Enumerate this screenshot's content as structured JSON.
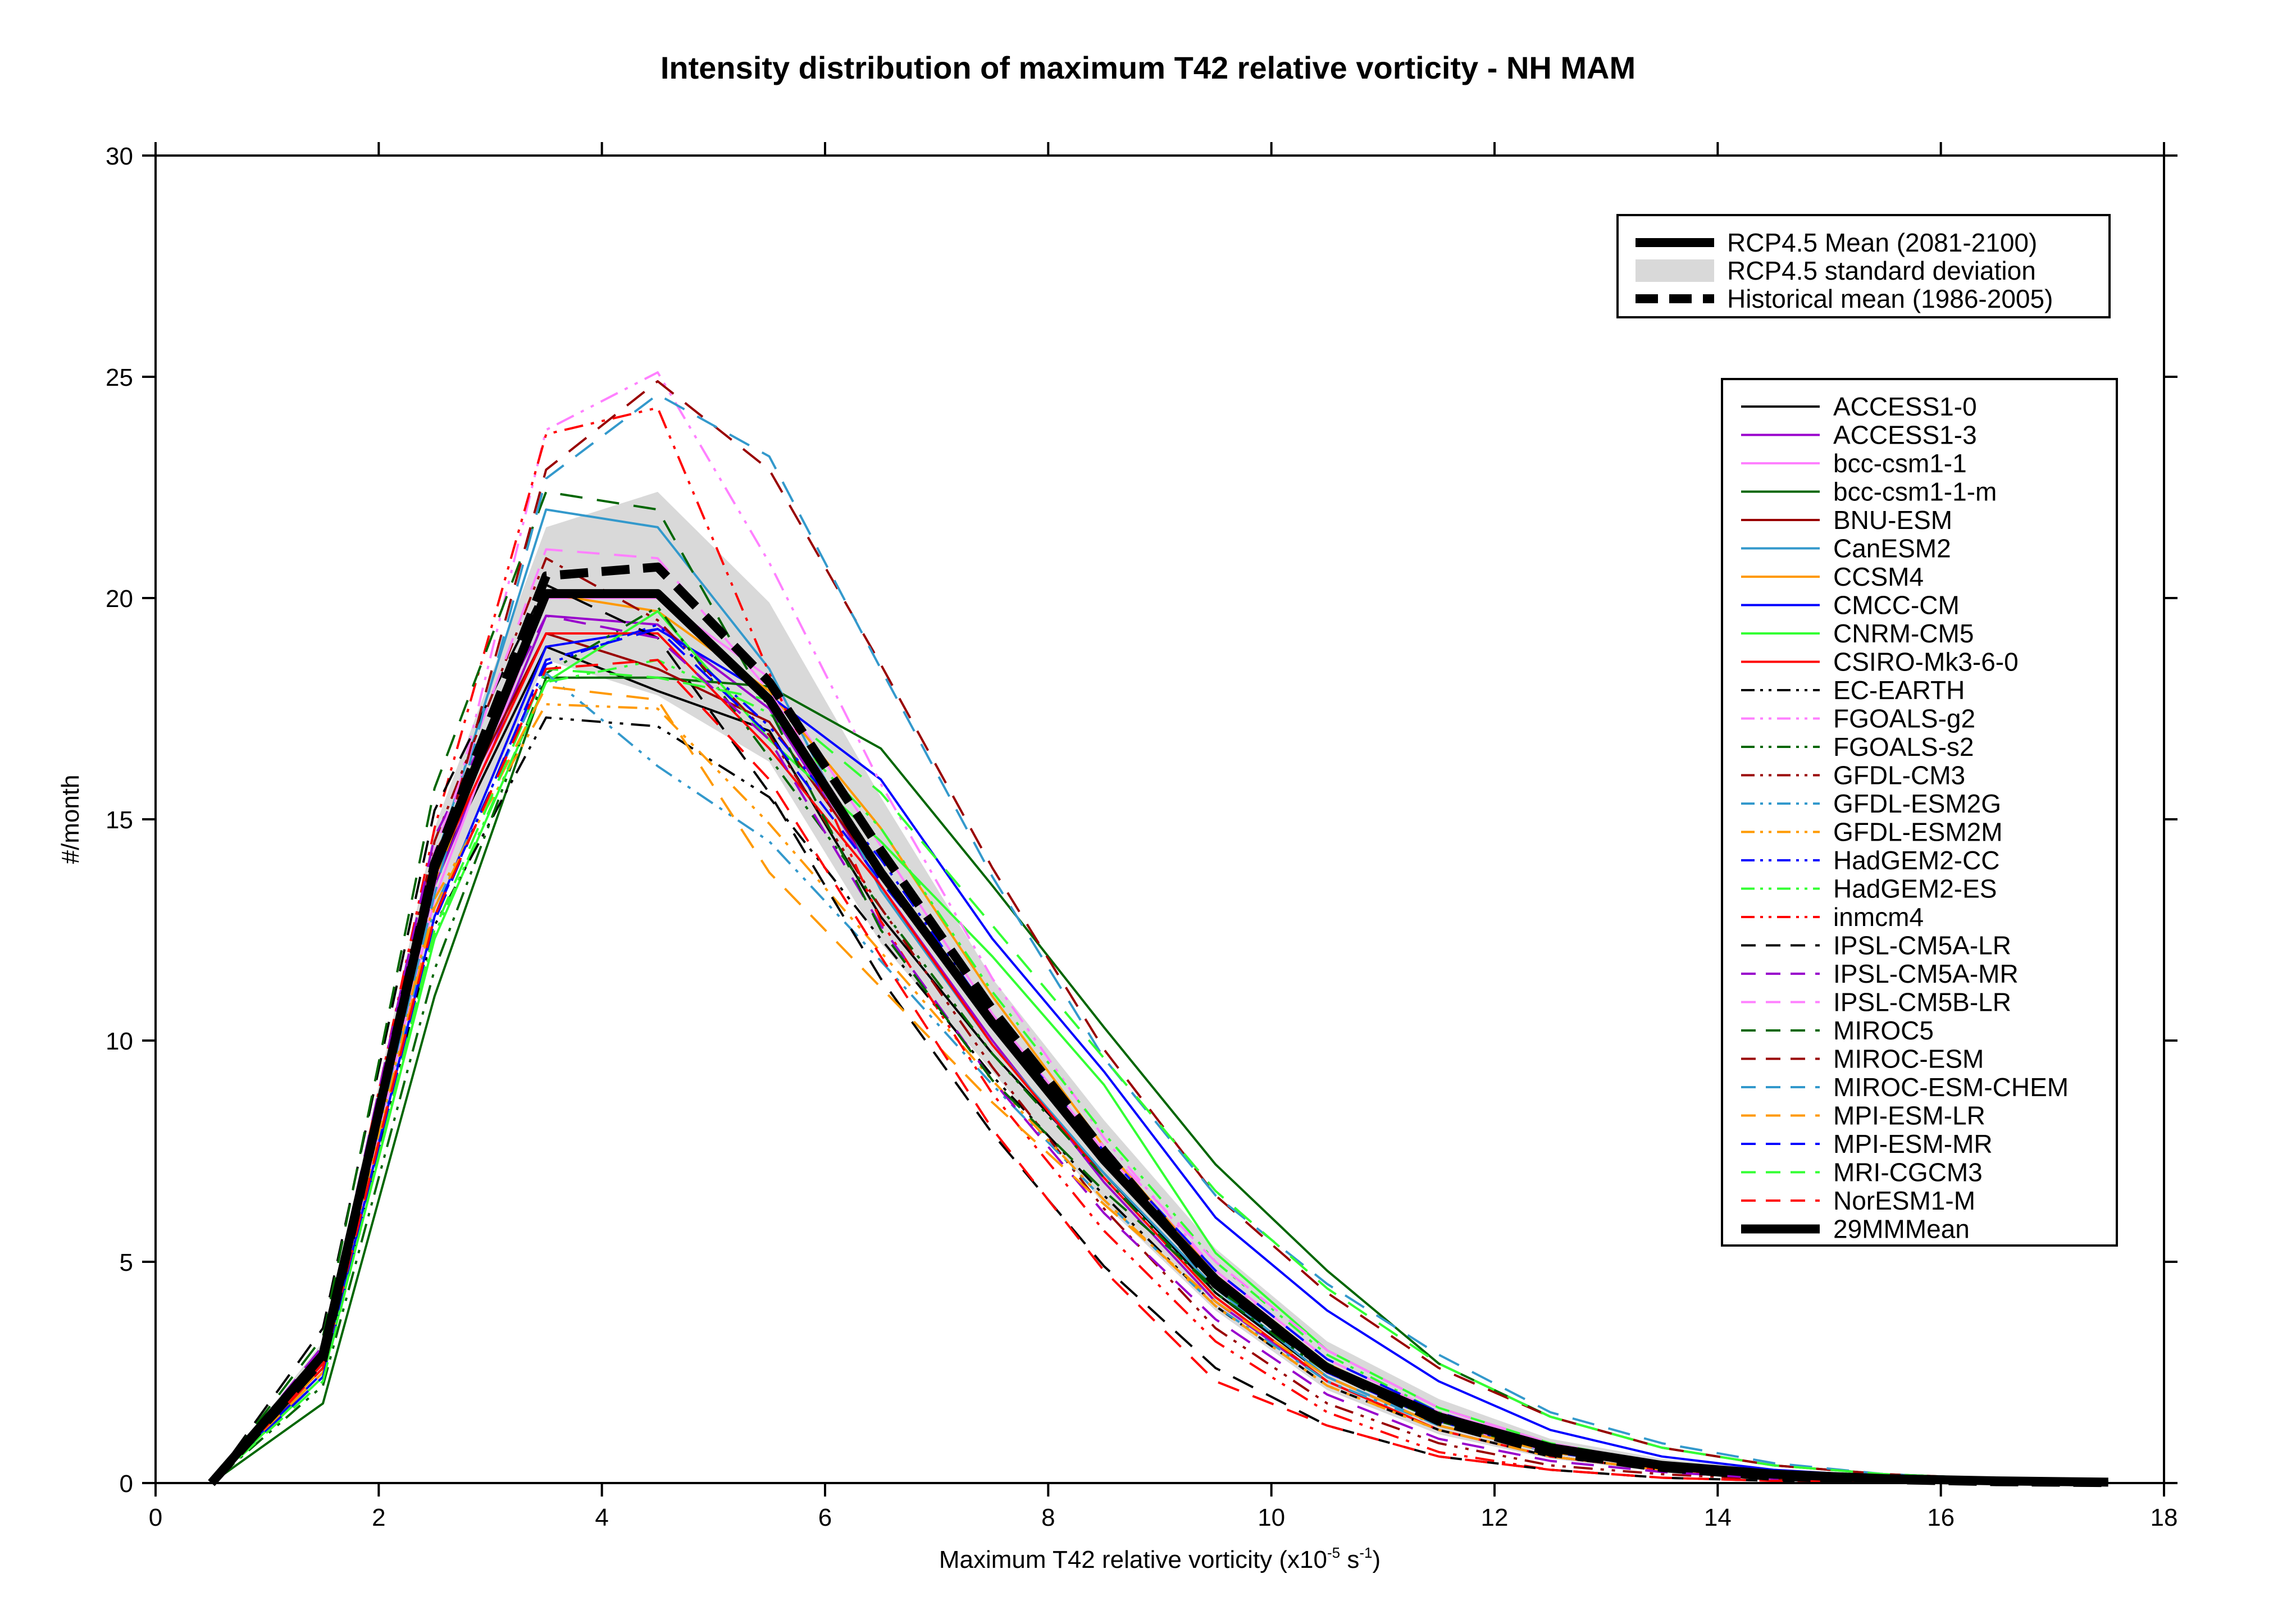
{
  "chart_data": {
    "type": "line",
    "title": "Intensity distribution of maximum T42 relative vorticity - NH MAM",
    "xlabel_main": "Maximum T42 relative vorticity (x10",
    "xlabel_exp1": "-5",
    "xlabel_mid": " s",
    "xlabel_exp2": "-1",
    "xlabel_end": ")",
    "ylabel": "#/month",
    "xlim": [
      0,
      18
    ],
    "ylim": [
      0,
      30
    ],
    "xticks": [
      0,
      2,
      4,
      6,
      8,
      10,
      12,
      14,
      16,
      18
    ],
    "yticks": [
      0,
      5,
      10,
      15,
      20,
      25,
      30
    ],
    "grid": false,
    "x": [
      0.5,
      1.5,
      2.5,
      3.5,
      4.5,
      5.5,
      6.5,
      7.5,
      8.5,
      9.5,
      10.5,
      11.5,
      12.5,
      13.5,
      14.5,
      15.5,
      16.5,
      17.5
    ],
    "legend_top": {
      "placement": "top-right",
      "entries": [
        {
          "name": "RCP4.5 Mean (2081-2100)",
          "style": "thick-solid"
        },
        {
          "name": "RCP4.5 standard deviation",
          "style": "band"
        },
        {
          "name": "Historical mean (1986-2005)",
          "style": "thick-dashed"
        }
      ]
    },
    "rcp45_mean": [
      0,
      2.9,
      13.9,
      20.1,
      20.1,
      17.7,
      13.8,
      10.4,
      7.3,
      4.6,
      2.6,
      1.5,
      0.8,
      0.4,
      0.2,
      0.1,
      0.05,
      0.02
    ],
    "historical_mean": [
      0,
      2.8,
      14.0,
      20.5,
      20.7,
      18.1,
      14.3,
      10.7,
      7.5,
      4.5,
      2.6,
      1.4,
      0.7,
      0.35,
      0.15,
      0.08,
      0.03,
      0.01
    ],
    "std_upper": [
      0,
      3.2,
      14.8,
      21.6,
      22.4,
      19.9,
      15.5,
      11.4,
      8.2,
      5.3,
      3.2,
      1.9,
      1.0,
      0.55,
      0.3,
      0.15,
      0.08,
      0.03
    ],
    "std_lower": [
      0,
      2.6,
      12.9,
      18.6,
      17.8,
      16.3,
      12.2,
      9.3,
      6.3,
      3.9,
      2.1,
      1.1,
      0.55,
      0.25,
      0.1,
      0.05,
      0.02,
      0.01
    ],
    "std_color": "#d9d9d9",
    "series": [
      {
        "name": "ACCESS1-0",
        "color": "#000000",
        "dash": "solid",
        "values": [
          0,
          2.8,
          13.7,
          18.9,
          17.9,
          17.0,
          12.8,
          9.7,
          7.0,
          4.3,
          2.4,
          1.3,
          0.7,
          0.35,
          0.15,
          0.07,
          0.03,
          0.01
        ]
      },
      {
        "name": "ACCESS1-3",
        "color": "#9900cc",
        "dash": "solid",
        "values": [
          0,
          2.7,
          13.5,
          19.6,
          19.4,
          17.5,
          13.5,
          10.0,
          6.8,
          4.1,
          2.3,
          1.2,
          0.6,
          0.3,
          0.12,
          0.06,
          0.02,
          0.01
        ]
      },
      {
        "name": "bcc-csm1-1",
        "color": "#ff80ff",
        "dash": "solid",
        "values": [
          0,
          2.6,
          13.2,
          20.0,
          20.0,
          18.2,
          14.4,
          10.6,
          7.5,
          4.8,
          2.8,
          1.6,
          0.9,
          0.45,
          0.2,
          0.1,
          0.04,
          0.02
        ]
      },
      {
        "name": "bcc-csm1-1-m",
        "color": "#006600",
        "dash": "solid",
        "values": [
          0,
          1.8,
          11.0,
          18.2,
          18.2,
          18.0,
          16.6,
          13.5,
          10.3,
          7.2,
          4.8,
          2.7,
          1.5,
          0.8,
          0.4,
          0.2,
          0.1,
          0.04
        ]
      },
      {
        "name": "BNU-ESM",
        "color": "#990000",
        "dash": "solid",
        "values": [
          0,
          2.9,
          14.2,
          19.2,
          18.4,
          17.2,
          13.7,
          10.4,
          7.4,
          4.6,
          2.6,
          1.4,
          0.7,
          0.35,
          0.15,
          0.07,
          0.03,
          0.01
        ]
      },
      {
        "name": "CanESM2",
        "color": "#3399cc",
        "dash": "solid",
        "values": [
          0,
          2.8,
          14.0,
          22.0,
          21.6,
          18.4,
          13.4,
          9.9,
          7.0,
          4.4,
          2.4,
          1.3,
          0.7,
          0.35,
          0.15,
          0.07,
          0.03,
          0.01
        ]
      },
      {
        "name": "CCSM4",
        "color": "#ff9900",
        "dash": "solid",
        "values": [
          0,
          2.6,
          13.6,
          20.1,
          19.7,
          17.9,
          14.8,
          11.0,
          7.6,
          4.7,
          2.7,
          1.5,
          0.8,
          0.4,
          0.2,
          0.1,
          0.04,
          0.02
        ]
      },
      {
        "name": "CMCC-CM",
        "color": "#0000ff",
        "dash": "solid",
        "values": [
          0,
          2.5,
          12.8,
          18.9,
          19.3,
          17.8,
          15.9,
          12.3,
          9.3,
          6.0,
          3.9,
          2.3,
          1.2,
          0.6,
          0.3,
          0.15,
          0.07,
          0.03
        ]
      },
      {
        "name": "CNRM-CM5",
        "color": "#33ff33",
        "dash": "solid",
        "values": [
          0,
          2.4,
          12.3,
          18.1,
          19.7,
          16.8,
          14.5,
          11.9,
          9.0,
          5.2,
          3.0,
          1.7,
          0.9,
          0.45,
          0.2,
          0.1,
          0.05,
          0.02
        ]
      },
      {
        "name": "CSIRO-Mk3-6-0",
        "color": "#ff0000",
        "dash": "solid",
        "values": [
          0,
          2.7,
          13.8,
          19.2,
          19.2,
          16.6,
          13.5,
          9.9,
          6.9,
          4.2,
          2.3,
          1.2,
          0.6,
          0.3,
          0.12,
          0.06,
          0.02,
          0.01
        ]
      },
      {
        "name": "EC-EARTH",
        "color": "#000000",
        "dash": "dashdotdot",
        "values": [
          0,
          2.5,
          12.6,
          17.3,
          17.1,
          15.5,
          12.3,
          9.2,
          6.5,
          4.0,
          2.2,
          1.2,
          0.6,
          0.3,
          0.12,
          0.06,
          0.02,
          0.01
        ]
      },
      {
        "name": "FGOALS-g2",
        "color": "#ff80ff",
        "dash": "dashdotdot",
        "values": [
          0,
          2.6,
          13.5,
          23.8,
          25.1,
          20.8,
          15.8,
          11.4,
          7.8,
          4.8,
          2.6,
          1.4,
          0.7,
          0.35,
          0.15,
          0.07,
          0.03,
          0.01
        ]
      },
      {
        "name": "FGOALS-s2",
        "color": "#006600",
        "dash": "dashdotdot",
        "values": [
          0,
          2.2,
          11.6,
          18.3,
          19.8,
          16.4,
          13.0,
          9.7,
          6.9,
          4.3,
          2.5,
          1.4,
          0.7,
          0.35,
          0.15,
          0.07,
          0.03,
          0.01
        ]
      },
      {
        "name": "GFDL-CM3",
        "color": "#990000",
        "dash": "dashdotdot",
        "values": [
          0,
          2.9,
          14.5,
          20.9,
          19.5,
          16.9,
          13.0,
          9.4,
          6.2,
          3.5,
          1.8,
          0.9,
          0.4,
          0.2,
          0.08,
          0.04,
          0.02,
          0.01
        ]
      },
      {
        "name": "GFDL-ESM2G",
        "color": "#3399cc",
        "dash": "dashdotdot",
        "values": [
          0,
          2.5,
          13.0,
          18.3,
          16.2,
          14.5,
          11.8,
          9.0,
          6.4,
          4.0,
          2.3,
          1.3,
          0.7,
          0.35,
          0.15,
          0.07,
          0.03,
          0.01
        ]
      },
      {
        "name": "GFDL-ESM2M",
        "color": "#ff9900",
        "dash": "dashdotdot",
        "values": [
          0,
          2.6,
          13.2,
          17.6,
          17.5,
          14.9,
          12.0,
          9.1,
          6.4,
          4.0,
          2.2,
          1.2,
          0.6,
          0.3,
          0.12,
          0.06,
          0.02,
          0.01
        ]
      },
      {
        "name": "HadGEM2-CC",
        "color": "#0000ff",
        "dash": "dashdotdot",
        "values": [
          0,
          2.5,
          12.8,
          18.5,
          19.4,
          17.1,
          14.1,
          10.5,
          7.3,
          4.5,
          2.5,
          1.4,
          0.7,
          0.35,
          0.15,
          0.07,
          0.03,
          0.01
        ]
      },
      {
        "name": "HadGEM2-ES",
        "color": "#33ff33",
        "dash": "dashdotdot",
        "values": [
          0,
          2.4,
          12.4,
          18.1,
          18.6,
          17.4,
          14.8,
          11.1,
          7.9,
          5.0,
          2.9,
          1.6,
          0.8,
          0.4,
          0.2,
          0.1,
          0.04,
          0.02
        ]
      },
      {
        "name": "inmcm4",
        "color": "#ff0000",
        "dash": "dashdotdot",
        "values": [
          0,
          2.9,
          14.8,
          23.7,
          24.3,
          18.3,
          12.7,
          8.8,
          5.7,
          3.2,
          1.6,
          0.7,
          0.3,
          0.12,
          0.05,
          0.02,
          0.01,
          0.0
        ]
      },
      {
        "name": "IPSL-CM5A-LR",
        "color": "#000000",
        "dash": "dash",
        "values": [
          0,
          3.5,
          15.2,
          20.3,
          19.1,
          15.6,
          11.4,
          7.9,
          4.9,
          2.6,
          1.3,
          0.6,
          0.3,
          0.12,
          0.05,
          0.02,
          0.01,
          0.0
        ]
      },
      {
        "name": "IPSL-CM5A-MR",
        "color": "#9900cc",
        "dash": "dash",
        "values": [
          0,
          3.1,
          14.6,
          19.6,
          19.1,
          16.8,
          12.6,
          9.1,
          6.1,
          3.7,
          2.0,
          1.0,
          0.5,
          0.25,
          0.1,
          0.05,
          0.02,
          0.01
        ]
      },
      {
        "name": "IPSL-CM5B-LR",
        "color": "#ff80ff",
        "dash": "dash",
        "values": [
          0,
          3.0,
          14.3,
          21.1,
          20.9,
          17.9,
          13.9,
          10.5,
          7.6,
          5.0,
          3.0,
          1.7,
          0.9,
          0.45,
          0.2,
          0.1,
          0.04,
          0.02
        ]
      },
      {
        "name": "MIROC5",
        "color": "#006600",
        "dash": "dash",
        "values": [
          0,
          3.3,
          15.7,
          22.4,
          22.0,
          17.5,
          12.5,
          9.1,
          6.6,
          4.4,
          2.7,
          1.5,
          0.8,
          0.4,
          0.2,
          0.1,
          0.05,
          0.02
        ]
      },
      {
        "name": "MIROC-ESM",
        "color": "#990000",
        "dash": "dash",
        "values": [
          0,
          2.9,
          13.6,
          22.9,
          24.9,
          22.9,
          18.5,
          13.9,
          9.8,
          6.5,
          4.3,
          2.6,
          1.5,
          0.8,
          0.4,
          0.2,
          0.1,
          0.04
        ]
      },
      {
        "name": "MIROC-ESM-CHEM",
        "color": "#3399cc",
        "dash": "dash",
        "values": [
          0,
          2.8,
          13.3,
          22.7,
          24.6,
          23.2,
          18.4,
          13.7,
          9.6,
          6.5,
          4.5,
          2.9,
          1.6,
          0.9,
          0.45,
          0.2,
          0.1,
          0.05
        ]
      },
      {
        "name": "MPI-ESM-LR",
        "color": "#ff9900",
        "dash": "dash",
        "values": [
          0,
          2.5,
          13.0,
          18.0,
          17.7,
          13.8,
          11.2,
          8.6,
          6.3,
          4.1,
          2.4,
          1.3,
          0.7,
          0.35,
          0.15,
          0.07,
          0.03,
          0.01
        ]
      },
      {
        "name": "MPI-ESM-MR",
        "color": "#0000ff",
        "dash": "dash",
        "values": [
          0,
          2.4,
          12.7,
          18.6,
          19.3,
          16.9,
          13.6,
          10.5,
          7.5,
          4.8,
          2.8,
          1.6,
          0.8,
          0.4,
          0.2,
          0.1,
          0.04,
          0.02
        ]
      },
      {
        "name": "MRI-CGCM3",
        "color": "#33ff33",
        "dash": "dash",
        "values": [
          0,
          2.3,
          12.5,
          18.4,
          18.2,
          17.7,
          15.6,
          12.6,
          9.6,
          6.6,
          4.4,
          2.7,
          1.5,
          0.8,
          0.4,
          0.2,
          0.1,
          0.04
        ]
      },
      {
        "name": "NorESM1-M",
        "color": "#ff0000",
        "dash": "dash",
        "values": [
          0,
          2.6,
          12.8,
          18.4,
          18.6,
          15.9,
          11.9,
          8.0,
          4.8,
          2.3,
          1.3,
          0.6,
          0.3,
          0.12,
          0.05,
          0.02,
          0.01,
          0.0
        ]
      }
    ],
    "legend_models": {
      "placement": "right",
      "mm_mean_label": "29MMMean"
    }
  }
}
